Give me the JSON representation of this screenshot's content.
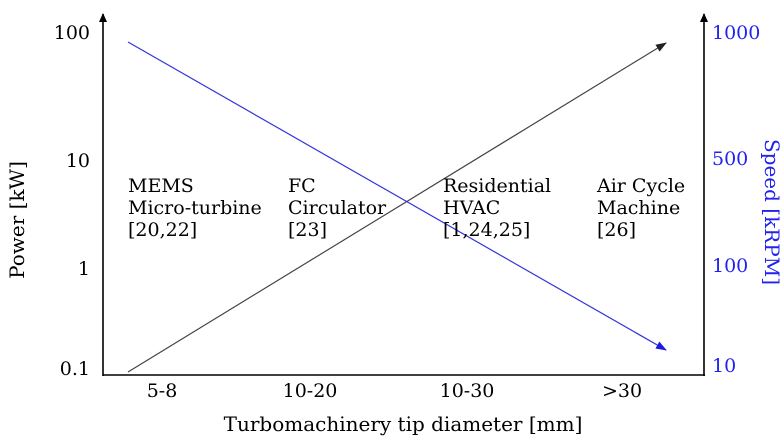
{
  "chart_data": {
    "type": "line",
    "title": "",
    "xlabel": "Turbomachinery tip diameter [mm]",
    "ylabel_left": "Power [kW]",
    "ylabel_right": "Speed [kRPM]",
    "categories": [
      "5-8",
      "10-20",
      "10-30",
      ">30"
    ],
    "left_ticks": [
      "0.1",
      "1",
      "10",
      "100"
    ],
    "right_ticks": [
      "10",
      "100",
      "500",
      "1000"
    ],
    "series": [
      {
        "axis": "left",
        "color": "#444444",
        "from": {
          "x_position": "5-8",
          "power_kw": 0.1
        },
        "to": {
          "x_position": ">30",
          "power_kw": 100
        }
      },
      {
        "axis": "right",
        "color": "#3333dd",
        "from": {
          "x_position": "5-8",
          "speed_krpm": 1000
        },
        "to": {
          "x_position": ">30",
          "speed_krpm": 10
        }
      }
    ],
    "annotations": [
      {
        "lines": [
          "MEMS",
          "Micro-turbine",
          "[20,22]"
        ]
      },
      {
        "lines": [
          "FC",
          "Circulator",
          "[23]"
        ]
      },
      {
        "lines": [
          "Residential",
          "HVAC",
          "[1,24,25]"
        ]
      },
      {
        "lines": [
          "Air Cycle",
          "Machine",
          "[26]"
        ]
      }
    ],
    "colors": {
      "axis": "#000000",
      "speed_axis": "#2222ee"
    }
  }
}
